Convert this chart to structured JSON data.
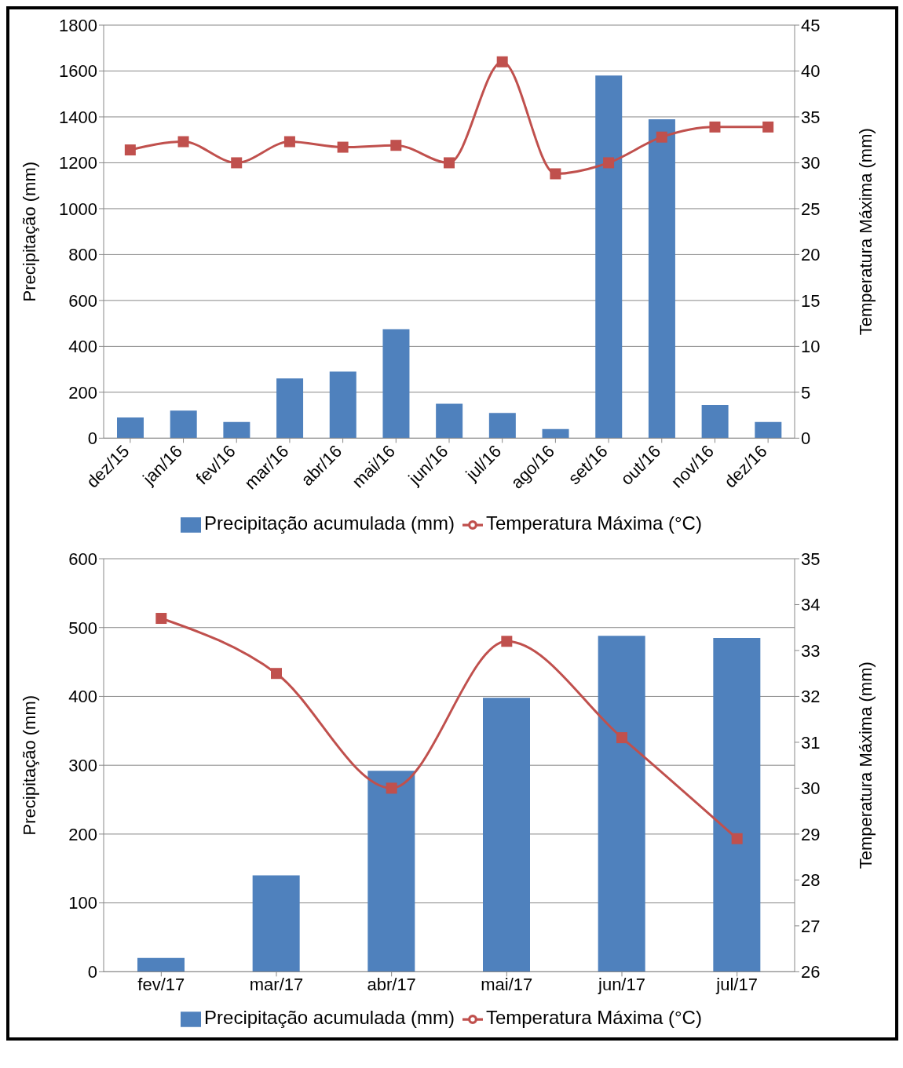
{
  "chart_data": [
    {
      "type": "bar",
      "categories": [
        "dez/15",
        "jan/16",
        "fev/16",
        "mar/16",
        "abr/16",
        "mai/16",
        "jun/16",
        "jul/16",
        "ago/16",
        "set/16",
        "out/16",
        "nov/16",
        "dez/16"
      ],
      "series": [
        {
          "name": "Precipitação acumulada (mm)",
          "color": "#4f81bd",
          "values": [
            90,
            120,
            70,
            260,
            290,
            475,
            150,
            110,
            40,
            1580,
            1390,
            145,
            70
          ]
        },
        {
          "name": "Temperatura Máxima (°C)",
          "type": "line",
          "axis": "y2",
          "color": "#c0504d",
          "values": [
            31.4,
            32.3,
            30,
            32.3,
            31.7,
            31.9,
            30,
            41,
            28.8,
            30,
            32.8,
            33.9,
            33.9
          ]
        }
      ],
      "ylabel": "Precipitação (mm)",
      "y2label": "Temperatura Máxima (mm)",
      "ylim": [
        0,
        1800
      ],
      "yticks": [
        0,
        200,
        400,
        600,
        800,
        1000,
        1200,
        1400,
        1600,
        1800
      ],
      "y2lim": [
        0,
        45
      ],
      "y2ticks": [
        0,
        5,
        10,
        15,
        20,
        25,
        30,
        35,
        40,
        45
      ],
      "grid": "y",
      "legend": "bottom",
      "marker": "square"
    },
    {
      "type": "bar",
      "categories": [
        "fev/17",
        "mar/17",
        "abr/17",
        "mai/17",
        "jun/17",
        "jul/17"
      ],
      "series": [
        {
          "name": "Precipitação acumulada (mm)",
          "color": "#4f81bd",
          "values": [
            20,
            140,
            292,
            398,
            488,
            485
          ]
        },
        {
          "name": "Temperatura Máxima (°C)",
          "type": "line",
          "axis": "y2",
          "color": "#c0504d",
          "values": [
            33.7,
            32.5,
            30,
            33.2,
            31.1,
            28.9
          ]
        }
      ],
      "ylabel": "Precipitação (mm)",
      "y2label": "Temperatura Máxima (mm)",
      "ylim": [
        0,
        600
      ],
      "yticks": [
        0,
        100,
        200,
        300,
        400,
        500,
        600
      ],
      "y2lim": [
        26,
        35
      ],
      "y2ticks": [
        26,
        27,
        28,
        29,
        30,
        31,
        32,
        33,
        34,
        35
      ],
      "grid": "y",
      "legend": "bottom",
      "marker": "square"
    }
  ]
}
